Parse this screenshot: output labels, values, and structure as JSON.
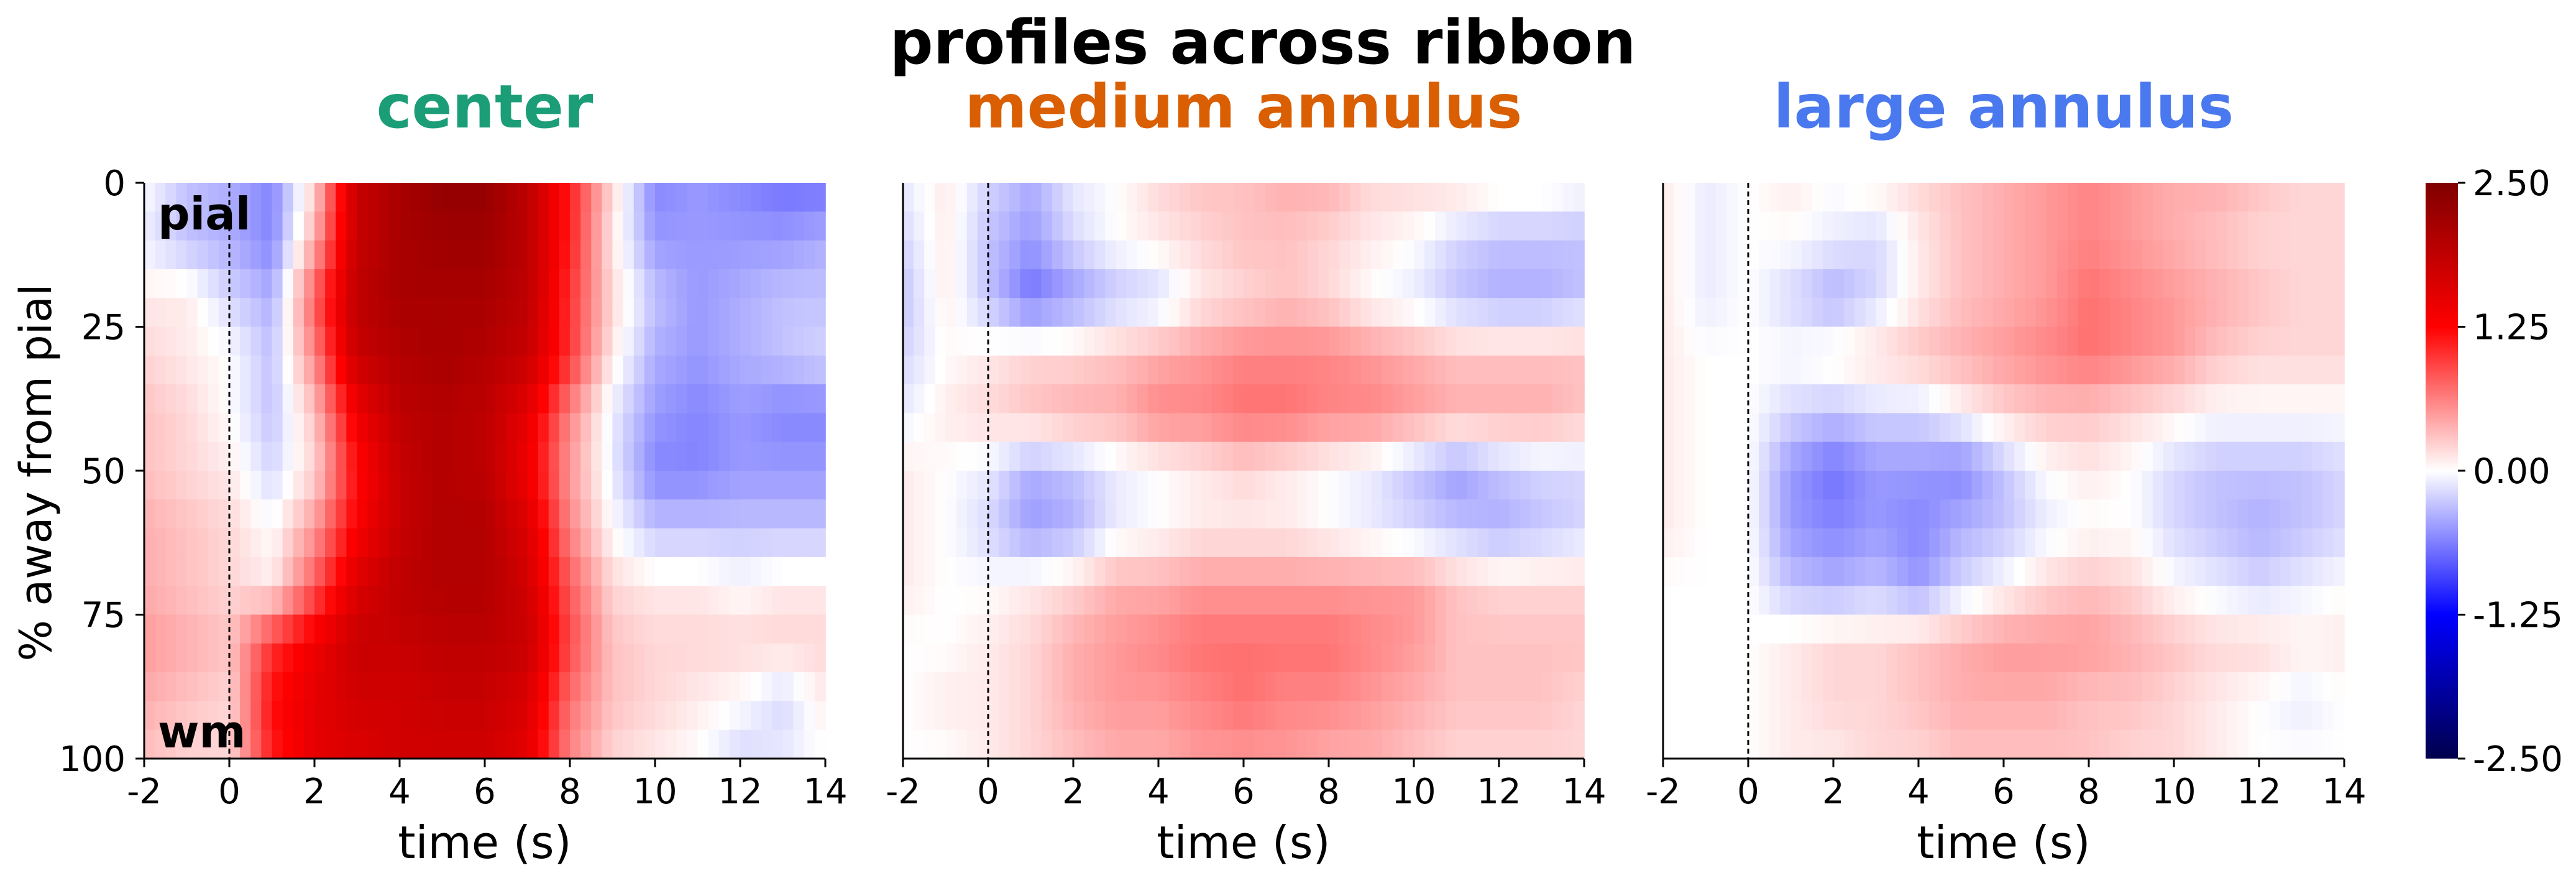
{
  "title": "profiles across ribbon",
  "ylabel": "% away from pial",
  "chart_data": {
    "type": "heatmap",
    "title": "profiles across ribbon",
    "xlabel": "time (s)",
    "ylabel": "% away from pial",
    "xlim": [
      -2,
      14
    ],
    "ylim": [
      100,
      0
    ],
    "xticks": [
      -2,
      0,
      2,
      4,
      6,
      8,
      10,
      12,
      14
    ],
    "xtick_labels": [
      "-2",
      "0",
      "2",
      "4",
      "6",
      "8",
      "10",
      "12",
      "14"
    ],
    "yticks": [
      0,
      25,
      50,
      75,
      100
    ],
    "ytick_labels": [
      "0",
      "25",
      "50",
      "75",
      "100"
    ],
    "stimulus_onset": 0,
    "colormap": "seismic",
    "colorbar": {
      "range": [
        -2.5,
        2.5
      ],
      "ticks": [
        2.5,
        1.25,
        0.0,
        -1.25,
        -2.5
      ],
      "tick_labels": [
        "2.50",
        "1.25",
        "0.00",
        "-1.25",
        "-2.50"
      ]
    },
    "time_points": [
      -2,
      -1,
      0,
      1,
      2,
      3,
      4,
      5,
      6,
      7,
      8,
      9,
      10,
      11,
      12,
      13,
      14
    ],
    "depth_bins": [
      0,
      10,
      20,
      30,
      40,
      50,
      60,
      70,
      80,
      90,
      100
    ],
    "panels": [
      {
        "name": "center",
        "color": "#1b9e77",
        "annotations": [
          "pial",
          "wm"
        ],
        "values": [
          [
            0.0,
            -0.3,
            -0.4,
            -0.6,
            0.2,
            1.8,
            2.1,
            2.3,
            2.3,
            1.9,
            1.1,
            0.2,
            -0.6,
            -0.5,
            -0.6,
            -0.7,
            -0.7
          ],
          [
            -0.1,
            -0.3,
            -0.4,
            -0.6,
            0.4,
            1.8,
            2.1,
            2.2,
            2.2,
            1.9,
            1.1,
            0.1,
            -0.5,
            -0.5,
            -0.5,
            -0.5,
            -0.4
          ],
          [
            0.1,
            0.1,
            -0.2,
            -0.4,
            0.8,
            1.9,
            2.1,
            2.1,
            2.1,
            1.9,
            1.0,
            0.2,
            -0.3,
            -0.5,
            -0.4,
            -0.3,
            -0.3
          ],
          [
            0.2,
            0.1,
            0.0,
            -0.3,
            0.6,
            1.8,
            2.0,
            2.1,
            2.0,
            1.8,
            1.0,
            0.1,
            -0.4,
            -0.5,
            -0.4,
            -0.3,
            -0.2
          ],
          [
            0.3,
            0.2,
            0.0,
            -0.3,
            0.3,
            1.4,
            1.9,
            2.0,
            1.9,
            1.5,
            0.6,
            -0.1,
            -0.5,
            -0.6,
            -0.5,
            -0.6,
            -0.6
          ],
          [
            0.3,
            0.2,
            0.1,
            -0.2,
            0.2,
            1.2,
            1.8,
            2.0,
            1.9,
            1.4,
            0.5,
            -0.1,
            -0.6,
            -0.6,
            -0.5,
            -0.5,
            -0.5
          ],
          [
            0.4,
            0.3,
            0.2,
            0.0,
            0.5,
            1.3,
            1.8,
            2.0,
            2.0,
            1.6,
            0.6,
            0.0,
            -0.3,
            -0.3,
            -0.3,
            -0.3,
            -0.3
          ],
          [
            0.4,
            0.3,
            0.2,
            0.1,
            0.8,
            1.6,
            1.9,
            2.0,
            2.0,
            1.7,
            0.8,
            0.2,
            0.1,
            0.1,
            0.0,
            0.1,
            0.1
          ],
          [
            0.5,
            0.4,
            0.3,
            1.0,
            1.4,
            1.8,
            1.8,
            1.9,
            1.9,
            1.8,
            0.9,
            0.3,
            0.2,
            0.2,
            0.2,
            0.2,
            0.2
          ],
          [
            0.4,
            0.3,
            0.2,
            1.2,
            1.5,
            1.7,
            1.7,
            1.8,
            1.8,
            1.6,
            0.7,
            0.3,
            0.2,
            0.1,
            0.0,
            -0.2,
            0.1
          ],
          [
            0.3,
            0.2,
            0.2,
            1.1,
            1.5,
            1.6,
            1.7,
            1.7,
            1.7,
            1.5,
            0.6,
            0.2,
            0.1,
            0.0,
            -0.2,
            -0.1,
            0.0
          ]
        ]
      },
      {
        "name": "medium annulus",
        "color": "#d95f02",
        "values": [
          [
            -0.1,
            0.1,
            -0.2,
            -0.4,
            -0.1,
            0.0,
            0.2,
            0.3,
            0.3,
            0.4,
            0.4,
            0.2,
            0.2,
            0.2,
            0.1,
            0.1,
            0.0
          ],
          [
            -0.2,
            0.1,
            -0.3,
            -0.5,
            -0.2,
            0.0,
            0.1,
            0.2,
            0.3,
            0.3,
            0.2,
            0.1,
            0.0,
            -0.2,
            -0.3,
            -0.3,
            -0.3
          ],
          [
            -0.3,
            0.1,
            -0.3,
            -0.7,
            -0.5,
            -0.3,
            -0.2,
            0.1,
            0.2,
            0.3,
            0.2,
            0.0,
            -0.1,
            -0.3,
            -0.4,
            -0.4,
            -0.3
          ],
          [
            -0.2,
            0.0,
            0.1,
            0.2,
            0.2,
            0.3,
            0.4,
            0.5,
            0.6,
            0.6,
            0.6,
            0.5,
            0.4,
            0.3,
            0.3,
            0.3,
            0.3
          ],
          [
            -0.1,
            0.1,
            0.2,
            0.3,
            0.4,
            0.4,
            0.6,
            0.6,
            0.7,
            0.7,
            0.6,
            0.6,
            0.5,
            0.4,
            0.4,
            0.4,
            0.3
          ],
          [
            0.1,
            0.0,
            -0.1,
            -0.4,
            -0.3,
            -0.1,
            0.0,
            0.1,
            0.2,
            0.1,
            0.0,
            -0.1,
            -0.3,
            -0.5,
            -0.3,
            -0.2,
            -0.2
          ],
          [
            0.1,
            0.0,
            -0.2,
            -0.5,
            -0.4,
            -0.1,
            0.0,
            0.1,
            0.1,
            0.1,
            0.0,
            -0.1,
            -0.2,
            -0.3,
            -0.4,
            -0.3,
            -0.2
          ],
          [
            0.1,
            0.0,
            0.0,
            0.1,
            0.2,
            0.4,
            0.4,
            0.5,
            0.5,
            0.5,
            0.5,
            0.5,
            0.5,
            0.3,
            0.2,
            0.2,
            0.2
          ],
          [
            0.0,
            0.0,
            0.1,
            0.2,
            0.4,
            0.5,
            0.6,
            0.7,
            0.7,
            0.7,
            0.7,
            0.6,
            0.5,
            0.3,
            0.3,
            0.3,
            0.3
          ],
          [
            0.0,
            0.1,
            0.1,
            0.2,
            0.4,
            0.5,
            0.5,
            0.6,
            0.7,
            0.6,
            0.6,
            0.5,
            0.4,
            0.3,
            0.3,
            0.3,
            0.2
          ],
          [
            0.0,
            0.0,
            0.1,
            0.2,
            0.3,
            0.4,
            0.4,
            0.5,
            0.5,
            0.5,
            0.4,
            0.4,
            0.3,
            0.2,
            0.2,
            0.2,
            0.2
          ]
        ]
      },
      {
        "name": "large annulus",
        "color": "#4a78ee",
        "values": [
          [
            0.1,
            -0.1,
            0.0,
            0.1,
            0.0,
            0.1,
            0.2,
            0.3,
            0.4,
            0.5,
            0.6,
            0.5,
            0.4,
            0.4,
            0.3,
            0.2,
            0.2
          ],
          [
            0.1,
            -0.1,
            0.0,
            0.0,
            -0.1,
            -0.2,
            0.1,
            0.3,
            0.4,
            0.5,
            0.6,
            0.5,
            0.4,
            0.3,
            0.2,
            0.2,
            0.2
          ],
          [
            0.1,
            -0.1,
            0.0,
            -0.2,
            -0.4,
            -0.2,
            0.1,
            0.3,
            0.4,
            0.5,
            0.7,
            0.6,
            0.5,
            0.4,
            0.3,
            0.2,
            0.2
          ],
          [
            0.1,
            0.0,
            0.0,
            0.0,
            0.1,
            0.2,
            0.3,
            0.4,
            0.5,
            0.6,
            0.7,
            0.6,
            0.5,
            0.3,
            0.2,
            0.2,
            0.2
          ],
          [
            0.1,
            0.0,
            0.0,
            -0.2,
            -0.3,
            -0.2,
            -0.2,
            0.0,
            0.2,
            0.3,
            0.3,
            0.2,
            0.1,
            0.0,
            0.0,
            0.0,
            0.0
          ],
          [
            0.1,
            0.0,
            0.0,
            -0.5,
            -0.7,
            -0.5,
            -0.5,
            -0.6,
            -0.3,
            0.0,
            0.1,
            0.0,
            -0.2,
            -0.3,
            -0.3,
            -0.3,
            -0.2
          ],
          [
            0.1,
            0.0,
            0.0,
            -0.5,
            -0.6,
            -0.5,
            -0.6,
            -0.4,
            -0.3,
            -0.1,
            0.0,
            0.0,
            -0.2,
            -0.3,
            -0.4,
            -0.3,
            -0.2
          ],
          [
            0.0,
            0.0,
            0.0,
            -0.3,
            -0.4,
            -0.3,
            -0.5,
            -0.2,
            0.0,
            0.2,
            0.3,
            0.2,
            0.0,
            -0.1,
            -0.2,
            -0.1,
            0.0
          ],
          [
            0.0,
            0.0,
            0.0,
            0.1,
            0.2,
            0.2,
            0.3,
            0.4,
            0.5,
            0.5,
            0.5,
            0.4,
            0.3,
            0.2,
            0.2,
            0.1,
            0.1
          ],
          [
            0.0,
            0.0,
            0.0,
            0.1,
            0.2,
            0.2,
            0.3,
            0.4,
            0.4,
            0.4,
            0.3,
            0.3,
            0.2,
            0.1,
            0.0,
            -0.1,
            0.0
          ],
          [
            0.0,
            0.0,
            0.0,
            0.1,
            0.1,
            0.2,
            0.2,
            0.3,
            0.3,
            0.3,
            0.3,
            0.2,
            0.2,
            0.1,
            0.0,
            0.0,
            0.0
          ]
        ]
      }
    ]
  }
}
